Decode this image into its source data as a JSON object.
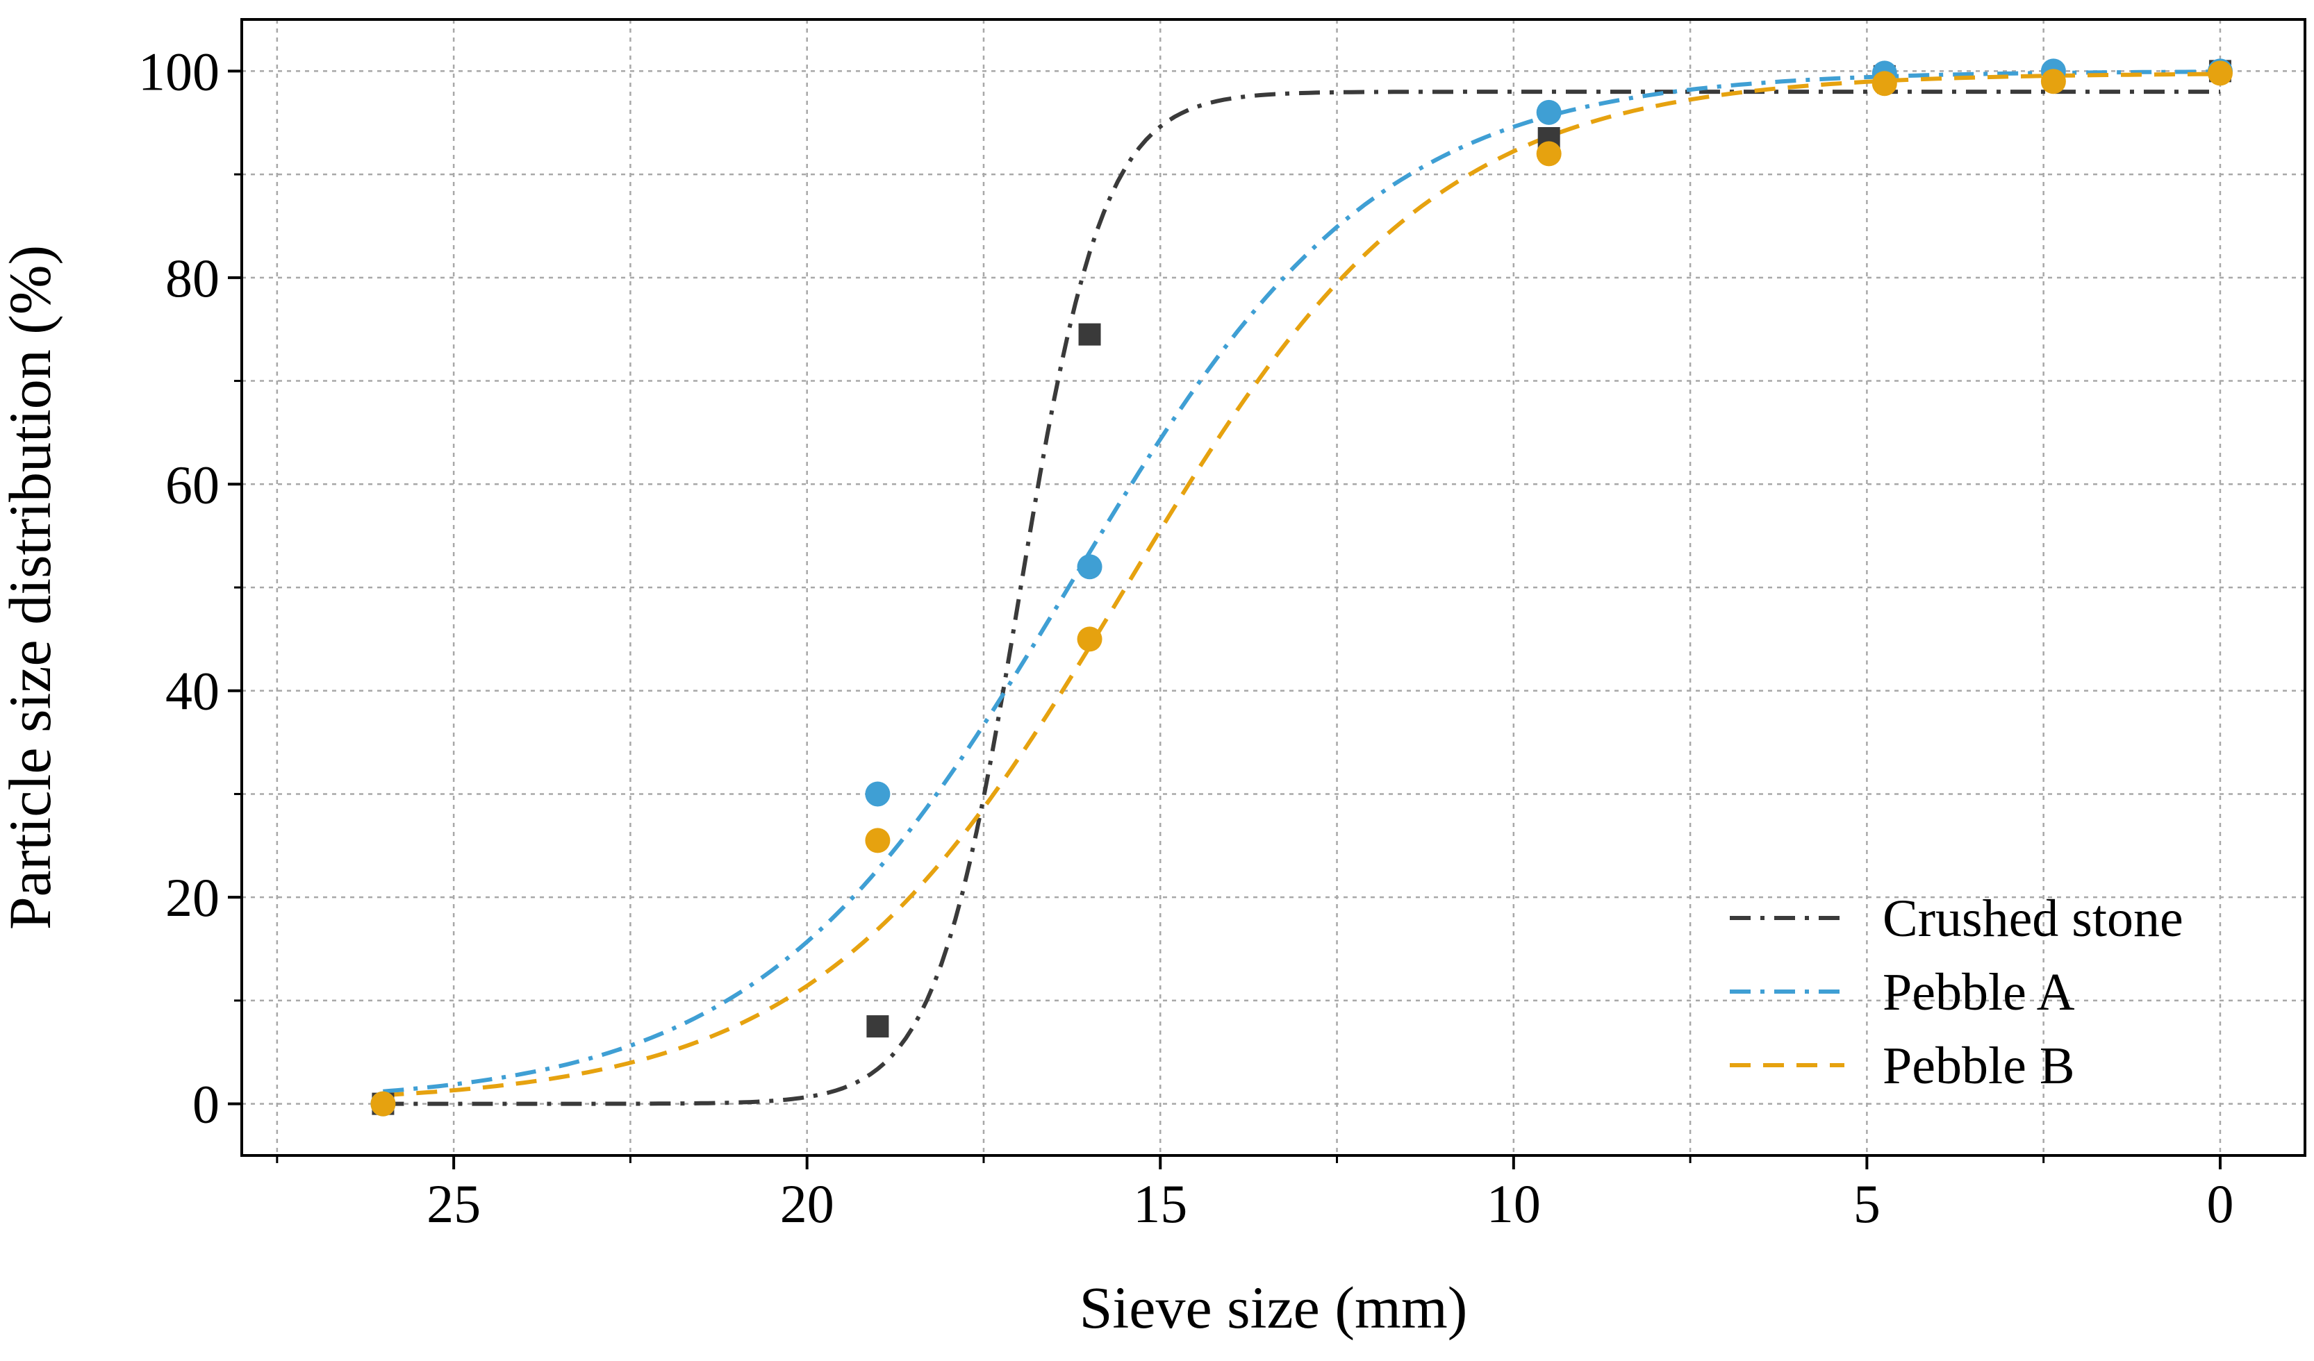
{
  "chart_data": {
    "type": "line",
    "xlabel": "Sieve size (mm)",
    "ylabel": "Particle size distribution (%)",
    "xlim": [
      28,
      -1.2
    ],
    "x_reversed": true,
    "ylim": [
      -5,
      105
    ],
    "xticks": [
      25,
      20,
      15,
      10,
      5,
      0
    ],
    "yticks": [
      0,
      20,
      40,
      60,
      80,
      100
    ],
    "xtick_labels": [
      "25",
      "20",
      "15",
      "10",
      "5",
      "0"
    ],
    "ytick_labels": [
      "0",
      "20",
      "40",
      "60",
      "80",
      "100"
    ],
    "grid": true,
    "legend_position": "bottom-right",
    "series": [
      {
        "name": "Crushed stone",
        "color": "#3a3a3a",
        "marker": "square",
        "line_style": "dash-dot",
        "points": [
          {
            "x": 26.0,
            "y": 0.0
          },
          {
            "x": 19.0,
            "y": 7.5
          },
          {
            "x": 16.0,
            "y": 74.5
          },
          {
            "x": 9.5,
            "y": 93.5
          },
          {
            "x": 4.75,
            "y": 99.5
          },
          {
            "x": 2.36,
            "y": 99.5
          },
          {
            "x": 0.0,
            "y": 100.0
          }
        ],
        "fit": {
          "model": "logistic",
          "top": 98.0,
          "center": 17.0,
          "width": 0.6
        }
      },
      {
        "name": "Pebble A",
        "color": "#3f9fd4",
        "marker": "circle",
        "line_style": "dash-dot",
        "points": [
          {
            "x": 26.0,
            "y": 0.0
          },
          {
            "x": 19.0,
            "y": 30.0
          },
          {
            "x": 16.0,
            "y": 52.0
          },
          {
            "x": 9.5,
            "y": 96.0
          },
          {
            "x": 4.75,
            "y": 99.8
          },
          {
            "x": 2.36,
            "y": 100.0
          },
          {
            "x": 0.0,
            "y": 100.0
          }
        ],
        "fit": {
          "model": "logistic",
          "top": 100.0,
          "center": 16.3,
          "width": 2.2
        }
      },
      {
        "name": "Pebble B",
        "color": "#e6a20f",
        "marker": "circle",
        "line_style": "dashed",
        "points": [
          {
            "x": 26.0,
            "y": 0.0
          },
          {
            "x": 19.0,
            "y": 25.5
          },
          {
            "x": 16.0,
            "y": 45.0
          },
          {
            "x": 9.5,
            "y": 92.0
          },
          {
            "x": 4.75,
            "y": 98.8
          },
          {
            "x": 2.36,
            "y": 99.0
          },
          {
            "x": 0.0,
            "y": 99.8
          }
        ],
        "fit": {
          "model": "logistic",
          "top": 99.8,
          "center": 15.5,
          "width": 2.2
        }
      }
    ]
  }
}
